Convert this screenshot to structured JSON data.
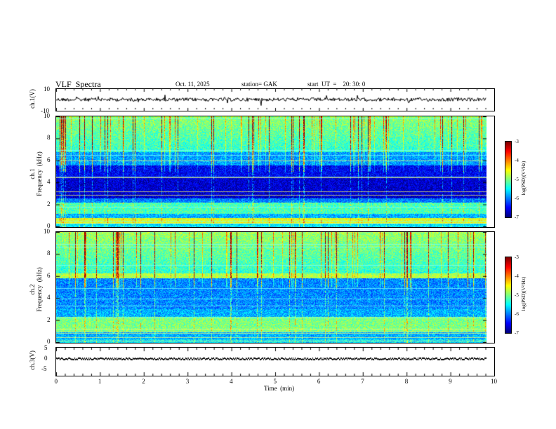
{
  "header": {
    "title": "VLF  Spectra",
    "date": "Oct. 11, 2025",
    "station": "station= GAK",
    "start": "start  UT  =    20: 30: 0"
  },
  "chart_data": [
    {
      "type": "line",
      "name": "ch1-waveform",
      "ylabel": "ch.1(V)",
      "ylim": [
        -10,
        10
      ],
      "yticks": [
        "10",
        "-10"
      ],
      "xlim": [
        0,
        10
      ],
      "grid": false
    },
    {
      "type": "heatmap",
      "name": "ch1-spectrogram",
      "ylabel": "ch.1\nFrequency  (kHz)",
      "ylabel_line1": "ch.1",
      "ylabel_line2": "Frequency  (kHz)",
      "ylim": [
        0,
        10
      ],
      "yticks": [
        "0",
        "2",
        "4",
        "6",
        "8",
        "10"
      ],
      "xlim": [
        0,
        9.8
      ],
      "colorbar": {
        "label": "log(PSD)(V²/Hz)",
        "range": [
          -7,
          -3
        ],
        "ticks": [
          "-3",
          "-4",
          "-5",
          "-6",
          "-7"
        ]
      }
    },
    {
      "type": "heatmap",
      "name": "ch2-spectrogram",
      "ylabel_line1": "ch.2",
      "ylabel_line2": "Frequency  (kHz)",
      "ylim": [
        0,
        10
      ],
      "yticks": [
        "0",
        "2",
        "4",
        "6",
        "8",
        "10"
      ],
      "xlim": [
        0,
        9.8
      ],
      "colorbar": {
        "label": "log(PSD)(V²/Hz)",
        "range": [
          -7,
          -3
        ],
        "ticks": [
          "-3",
          "-4",
          "-5",
          "-6",
          "-7"
        ]
      }
    },
    {
      "type": "line",
      "name": "ch3-waveform",
      "ylabel": "ch.3(V)",
      "ylim": [
        -5,
        5
      ],
      "yticks": [
        "5",
        "0",
        "-5"
      ],
      "xlim": [
        0,
        10
      ],
      "xlabel": "Time  (min)",
      "xticks": [
        "0",
        "1",
        "2",
        "3",
        "4",
        "5",
        "6",
        "7",
        "8",
        "9",
        "10"
      ]
    }
  ],
  "colors": {
    "jet_dark": "#00007f",
    "jet_blue": "#0000ff",
    "jet_cyan": "#00ffff",
    "jet_green": "#00ff00",
    "jet_yellow": "#ffff00",
    "jet_red": "#ff0000",
    "jet_darkred": "#7f0000"
  }
}
